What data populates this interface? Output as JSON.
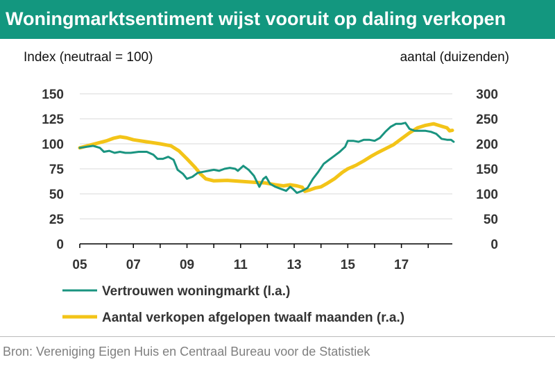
{
  "title": "Woningmarktsentiment wijst vooruit op daling verkopen",
  "source": "Bron: Vereniging Eigen Huis en Centraal Bureau voor de Statistiek",
  "colors": {
    "title_bg": "#13977f",
    "series_confidence": "#1a9480",
    "series_sales": "#f3c418",
    "grid": "#d9d9d9"
  },
  "chart_data": {
    "type": "line",
    "y_left": {
      "label": "Index (neutraal = 100)",
      "range": [
        0,
        150
      ],
      "ticks": [
        "0",
        "25",
        "50",
        "75",
        "100",
        "125",
        "150"
      ]
    },
    "y_right": {
      "label": "aantal (duizenden)",
      "range": [
        0,
        300
      ],
      "ticks": [
        "0",
        "50",
        "100",
        "150",
        "200",
        "250",
        "300"
      ]
    },
    "x": {
      "range": [
        2005,
        2018.9
      ],
      "ticks": [
        "05",
        "07",
        "09",
        "11",
        "13",
        "15",
        "17"
      ]
    },
    "grid": true,
    "legend_position": "bottom",
    "series": [
      {
        "name": "Vertrouwen woningmarkt (l.a.)",
        "axis": "left",
        "points": [
          [
            2005.0,
            96
          ],
          [
            2005.25,
            97
          ],
          [
            2005.5,
            98
          ],
          [
            2005.75,
            96
          ],
          [
            2005.9,
            92
          ],
          [
            2006.1,
            93
          ],
          [
            2006.3,
            91
          ],
          [
            2006.5,
            92
          ],
          [
            2006.7,
            91
          ],
          [
            2006.9,
            91
          ],
          [
            2007.2,
            92
          ],
          [
            2007.5,
            92
          ],
          [
            2007.75,
            89
          ],
          [
            2007.9,
            85
          ],
          [
            2008.1,
            85
          ],
          [
            2008.3,
            87
          ],
          [
            2008.5,
            84
          ],
          [
            2008.65,
            74
          ],
          [
            2008.85,
            70
          ],
          [
            2009.0,
            65
          ],
          [
            2009.2,
            67
          ],
          [
            2009.4,
            71
          ],
          [
            2009.6,
            72
          ],
          [
            2009.8,
            73
          ],
          [
            2010.0,
            74
          ],
          [
            2010.2,
            73
          ],
          [
            2010.4,
            75
          ],
          [
            2010.6,
            76
          ],
          [
            2010.8,
            75
          ],
          [
            2010.9,
            73
          ],
          [
            2011.1,
            78
          ],
          [
            2011.3,
            74
          ],
          [
            2011.5,
            68
          ],
          [
            2011.7,
            57
          ],
          [
            2011.85,
            65
          ],
          [
            2011.95,
            67
          ],
          [
            2012.1,
            60
          ],
          [
            2012.3,
            57
          ],
          [
            2012.5,
            55
          ],
          [
            2012.7,
            53
          ],
          [
            2012.85,
            57
          ],
          [
            2012.95,
            55
          ],
          [
            2013.1,
            51
          ],
          [
            2013.3,
            53
          ],
          [
            2013.5,
            56
          ],
          [
            2013.7,
            65
          ],
          [
            2013.9,
            72
          ],
          [
            2014.1,
            80
          ],
          [
            2014.3,
            84
          ],
          [
            2014.5,
            88
          ],
          [
            2014.7,
            92
          ],
          [
            2014.9,
            97
          ],
          [
            2015.0,
            103
          ],
          [
            2015.2,
            103
          ],
          [
            2015.4,
            102
          ],
          [
            2015.6,
            104
          ],
          [
            2015.8,
            104
          ],
          [
            2016.0,
            103
          ],
          [
            2016.2,
            106
          ],
          [
            2016.4,
            112
          ],
          [
            2016.6,
            117
          ],
          [
            2016.8,
            120
          ],
          [
            2017.0,
            120
          ],
          [
            2017.15,
            121
          ],
          [
            2017.3,
            115
          ],
          [
            2017.5,
            113
          ],
          [
            2017.7,
            113
          ],
          [
            2017.9,
            113
          ],
          [
            2018.1,
            112
          ],
          [
            2018.3,
            110
          ],
          [
            2018.5,
            105
          ],
          [
            2018.7,
            104
          ],
          [
            2018.85,
            104
          ],
          [
            2018.95,
            102
          ]
        ]
      },
      {
        "name": "Aantal verkopen afgelopen twaalf maanden (r.a.)",
        "axis": "right",
        "points": [
          [
            2005.0,
            192
          ],
          [
            2005.5,
            199
          ],
          [
            2006.0,
            206
          ],
          [
            2006.25,
            211
          ],
          [
            2006.5,
            214
          ],
          [
            2006.75,
            212
          ],
          [
            2007.0,
            208
          ],
          [
            2007.5,
            204
          ],
          [
            2008.0,
            200
          ],
          [
            2008.4,
            196
          ],
          [
            2008.7,
            186
          ],
          [
            2009.0,
            170
          ],
          [
            2009.3,
            153
          ],
          [
            2009.5,
            140
          ],
          [
            2009.7,
            130
          ],
          [
            2010.0,
            126
          ],
          [
            2010.5,
            127
          ],
          [
            2011.0,
            125
          ],
          [
            2011.5,
            123
          ],
          [
            2011.9,
            122
          ],
          [
            2012.3,
            118
          ],
          [
            2012.6,
            116
          ],
          [
            2012.85,
            118
          ],
          [
            2013.1,
            116
          ],
          [
            2013.3,
            113
          ],
          [
            2013.4,
            105
          ],
          [
            2013.6,
            108
          ],
          [
            2013.8,
            112
          ],
          [
            2014.0,
            114
          ],
          [
            2014.2,
            120
          ],
          [
            2014.5,
            130
          ],
          [
            2014.8,
            143
          ],
          [
            2015.0,
            150
          ],
          [
            2015.3,
            157
          ],
          [
            2015.6,
            166
          ],
          [
            2015.9,
            176
          ],
          [
            2016.1,
            182
          ],
          [
            2016.4,
            190
          ],
          [
            2016.7,
            198
          ],
          [
            2017.0,
            210
          ],
          [
            2017.3,
            222
          ],
          [
            2017.6,
            232
          ],
          [
            2017.9,
            237
          ],
          [
            2018.2,
            240
          ],
          [
            2018.45,
            236
          ],
          [
            2018.7,
            232
          ],
          [
            2018.8,
            226
          ],
          [
            2018.9,
            227
          ]
        ]
      }
    ]
  }
}
